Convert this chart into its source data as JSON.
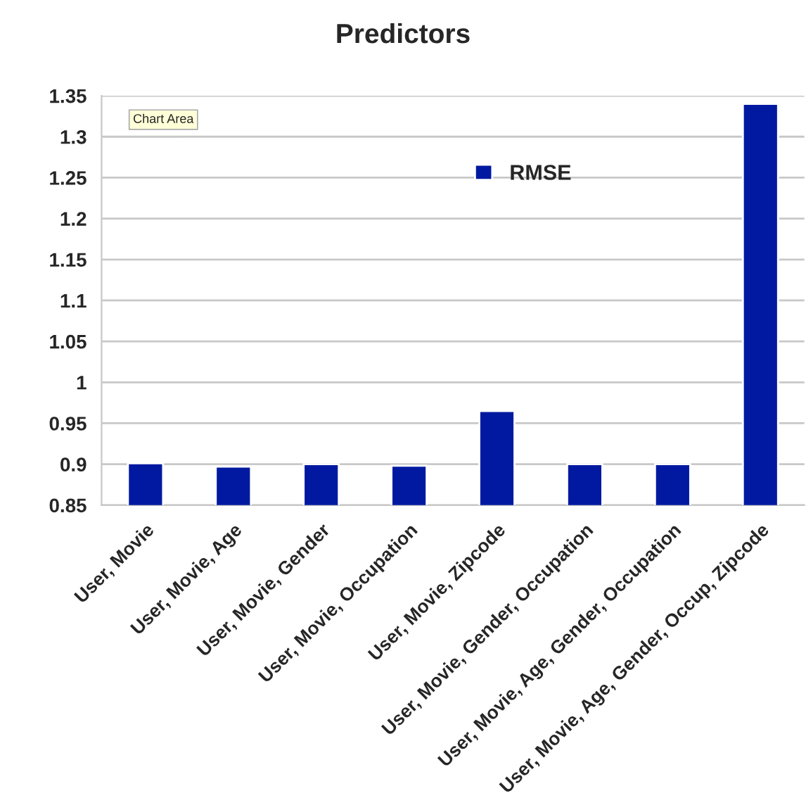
{
  "chart_data": {
    "type": "bar",
    "title": "Predictors",
    "categories": [
      "User, Movie",
      "User, Movie, Age",
      "User, Movie, Gender",
      "User, Movie, Occupation",
      "User, Movie, Zipcode",
      "User, Movie, Gender, Occupation",
      "User, Movie, Age, Gender, Occupation",
      "User, Movie, Age, Gender, Occup, Zipcode"
    ],
    "series": [
      {
        "name": "RMSE",
        "color": "#0019a0",
        "values": [
          0.901,
          0.897,
          0.9,
          0.898,
          0.965,
          0.9,
          0.9,
          1.34
        ]
      }
    ],
    "ylim": [
      0.85,
      1.35
    ],
    "yticks": [
      0.85,
      0.9,
      0.95,
      1,
      1.05,
      1.1,
      1.15,
      1.2,
      1.25,
      1.3,
      1.35
    ],
    "grid": "y",
    "legend": "top",
    "annotations": [
      "Chart Area"
    ]
  }
}
